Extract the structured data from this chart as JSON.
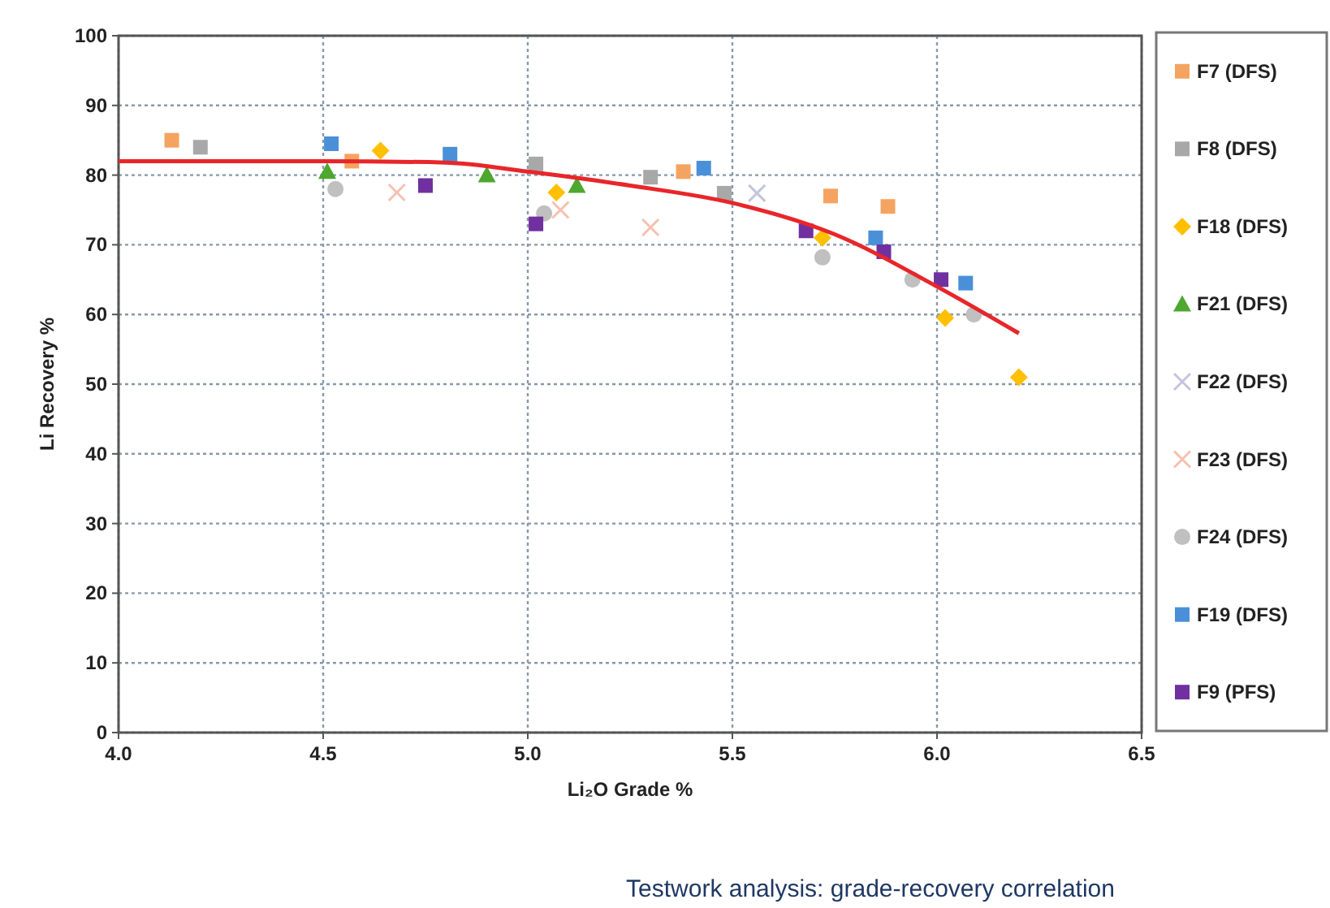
{
  "chart_data": {
    "type": "scatter",
    "xlabel": "Li₂O Grade %",
    "ylabel": "Li Recovery %",
    "xlim": [
      4.0,
      6.5
    ],
    "xticks": [
      {
        "value": 4.0,
        "label": "4.0"
      },
      {
        "value": 4.5,
        "label": "4.5"
      },
      {
        "value": 5.0,
        "label": "5.0"
      },
      {
        "value": 5.5,
        "label": "5.5"
      },
      {
        "value": 6.0,
        "label": "6.0"
      },
      {
        "value": 6.5,
        "label": "6.5"
      }
    ],
    "ylim": [
      0,
      100
    ],
    "yticks": [
      0,
      10,
      20,
      30,
      40,
      50,
      60,
      70,
      80,
      90,
      100
    ],
    "grid": true,
    "legend": "right",
    "annotations": [
      "Testwork analysis: grade-recovery correlation"
    ],
    "series": [
      {
        "name": "F7 (DFS)",
        "color": "#f4a460",
        "marker": "square",
        "x": [
          4.13,
          4.57,
          5.38,
          5.74,
          5.88
        ],
        "values": [
          85,
          82,
          80.5,
          77,
          75.5
        ]
      },
      {
        "name": "F8 (DFS)",
        "color": "#a8a8a8",
        "marker": "square",
        "x": [
          4.2,
          5.02,
          5.3,
          5.48
        ],
        "values": [
          84,
          81.6,
          79.7,
          77.4
        ]
      },
      {
        "name": "F18 (DFS)",
        "color": "#ffc000",
        "marker": "diamond",
        "x": [
          4.64,
          5.07,
          5.72,
          6.02,
          6.2
        ],
        "values": [
          83.5,
          77.5,
          71,
          59.5,
          51
        ]
      },
      {
        "name": "F21 (DFS)",
        "color": "#4ea72e",
        "marker": "triangle",
        "x": [
          4.51,
          4.9,
          5.12
        ],
        "values": [
          80.5,
          80,
          78.5
        ]
      },
      {
        "name": "F22 (DFS)",
        "color": "#c4c4dc",
        "marker": "cross",
        "x": [
          5.56
        ],
        "values": [
          77.4
        ]
      },
      {
        "name": "F23 (DFS)",
        "color": "#f6c0b0",
        "marker": "cross",
        "x": [
          4.68,
          5.08,
          5.3
        ],
        "values": [
          77.5,
          75,
          72.5
        ]
      },
      {
        "name": "F24 (DFS)",
        "color": "#c0c0c0",
        "marker": "circle",
        "x": [
          4.53,
          5.04,
          5.72,
          5.94,
          6.09
        ],
        "values": [
          78,
          74.5,
          68.2,
          65,
          60
        ]
      },
      {
        "name": "F19 (DFS)",
        "color": "#4a90d9",
        "marker": "square",
        "x": [
          4.52,
          4.81,
          5.43,
          5.85,
          6.07
        ],
        "values": [
          84.5,
          83,
          81,
          71,
          64.5
        ]
      },
      {
        "name": "F9 (PFS)",
        "color": "#7030a0",
        "marker": "square",
        "x": [
          4.75,
          5.02,
          5.68,
          5.87,
          6.01
        ],
        "values": [
          78.5,
          73,
          72,
          69,
          65
        ]
      },
      {
        "type": "line",
        "color": "#e8262a",
        "marker": "none",
        "x": [
          4.0,
          4.25,
          4.5,
          4.8,
          5.0,
          5.25,
          5.5,
          5.75,
          6.0,
          6.2
        ],
        "values": [
          82,
          82,
          82,
          81.8,
          80.5,
          78.5,
          76,
          71.5,
          64,
          57.3
        ]
      }
    ]
  }
}
